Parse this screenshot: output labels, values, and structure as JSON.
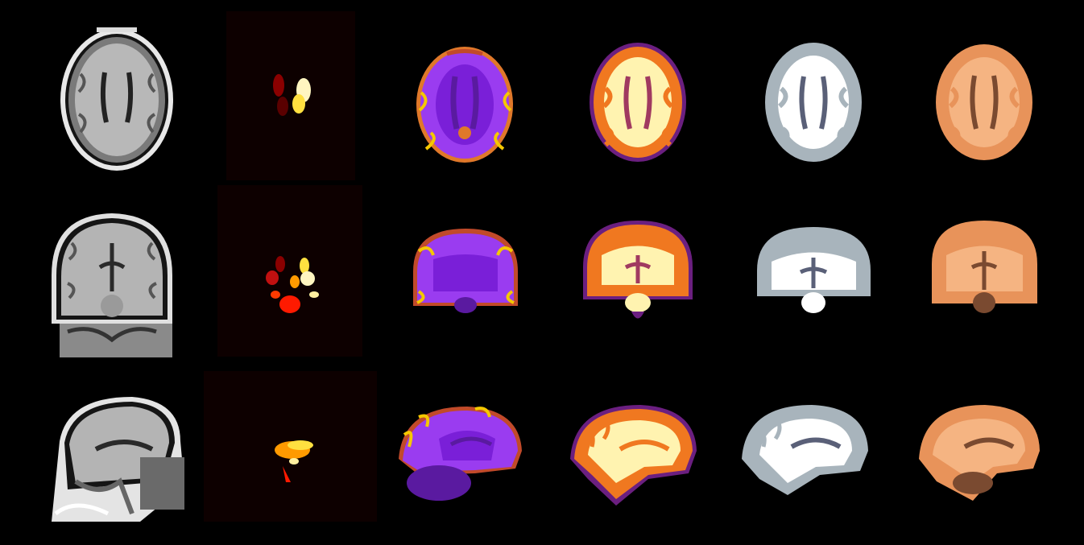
{
  "figure": {
    "background": "#000000",
    "rows": [
      "axial",
      "coronal",
      "sagittal"
    ],
    "columns": [
      {
        "id": "t1-mri",
        "palette": [
          "#0a0a0a",
          "#6e6e6e",
          "#b4b4b4",
          "#e6e6e6"
        ]
      },
      {
        "id": "subcortical-segmentation",
        "palette": [
          "#0d0000",
          "#7a0000",
          "#c01010",
          "#ff3a00",
          "#ff9a00",
          "#ffe040",
          "#fffbe0"
        ]
      },
      {
        "id": "parcellation-map",
        "palette": [
          "#7a1fd8",
          "#9a3cf0",
          "#5a1aa0",
          "#e0782a",
          "#f5c800",
          "#c14a2a"
        ]
      },
      {
        "id": "tissue-segmentation-inferno",
        "palette": [
          "#6b1f80",
          "#f07820",
          "#fff3b0",
          "#a03a60"
        ]
      },
      {
        "id": "tissue-segmentation-gray",
        "palette": [
          "#5a6078",
          "#a8b4bc",
          "#ffffff"
        ]
      },
      {
        "id": "tissue-segmentation-copper",
        "palette": [
          "#7a4a30",
          "#e8935a",
          "#f5b482"
        ]
      }
    ]
  }
}
